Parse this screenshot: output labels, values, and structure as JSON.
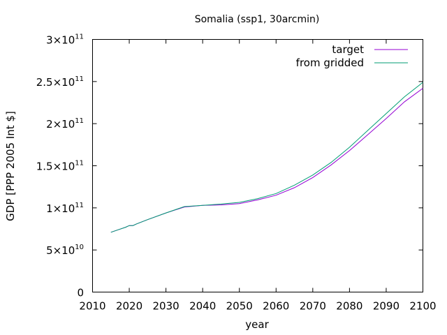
{
  "chart_data": {
    "type": "line",
    "title": "Somalia (ssp1, 30arcmin)",
    "xlabel": "year",
    "ylabel": "GDP [PPP 2005 Int $]",
    "xlim": [
      2010,
      2100
    ],
    "ylim": [
      0,
      300000000000
    ],
    "x_ticks": [
      2010,
      2020,
      2030,
      2040,
      2050,
      2060,
      2070,
      2080,
      2090,
      2100
    ],
    "y_ticks": [
      {
        "value": 0,
        "mant": "0",
        "exp": ""
      },
      {
        "value": 50000000000,
        "mant": "5×10",
        "exp": "10"
      },
      {
        "value": 100000000000,
        "mant": "1×10",
        "exp": "11"
      },
      {
        "value": 150000000000,
        "mant": "1.5×10",
        "exp": "11"
      },
      {
        "value": 200000000000,
        "mant": "2×10",
        "exp": "11"
      },
      {
        "value": 250000000000,
        "mant": "2.5×10",
        "exp": "11"
      },
      {
        "value": 300000000000,
        "mant": "3×10",
        "exp": "11"
      }
    ],
    "legend_position": "top-right",
    "grid": false,
    "x": [
      2015,
      2017,
      2019,
      2020,
      2021,
      2022,
      2025,
      2030,
      2035,
      2040,
      2045,
      2050,
      2055,
      2060,
      2065,
      2070,
      2075,
      2080,
      2085,
      2090,
      2095,
      2100
    ],
    "series": [
      {
        "name": "target",
        "color": "#9400d3",
        "values": [
          71000000000,
          74000000000,
          77000000000,
          79000000000,
          79000000000,
          81000000000,
          86000000000,
          94000000000,
          101000000000,
          103000000000,
          103500000000,
          105000000000,
          109500000000,
          115000000000,
          124000000000,
          136000000000,
          151000000000,
          168000000000,
          187000000000,
          206000000000,
          226000000000,
          242000000000
        ]
      },
      {
        "name": "from gridded",
        "color": "#009e73",
        "values": [
          71000000000,
          74000000000,
          77000000000,
          79000000000,
          79000000000,
          81000000000,
          86000000000,
          94000000000,
          101500000000,
          103000000000,
          104500000000,
          106500000000,
          111000000000,
          117000000000,
          127000000000,
          139000000000,
          154000000000,
          172000000000,
          192000000000,
          212000000000,
          232000000000,
          249000000000
        ]
      }
    ]
  }
}
